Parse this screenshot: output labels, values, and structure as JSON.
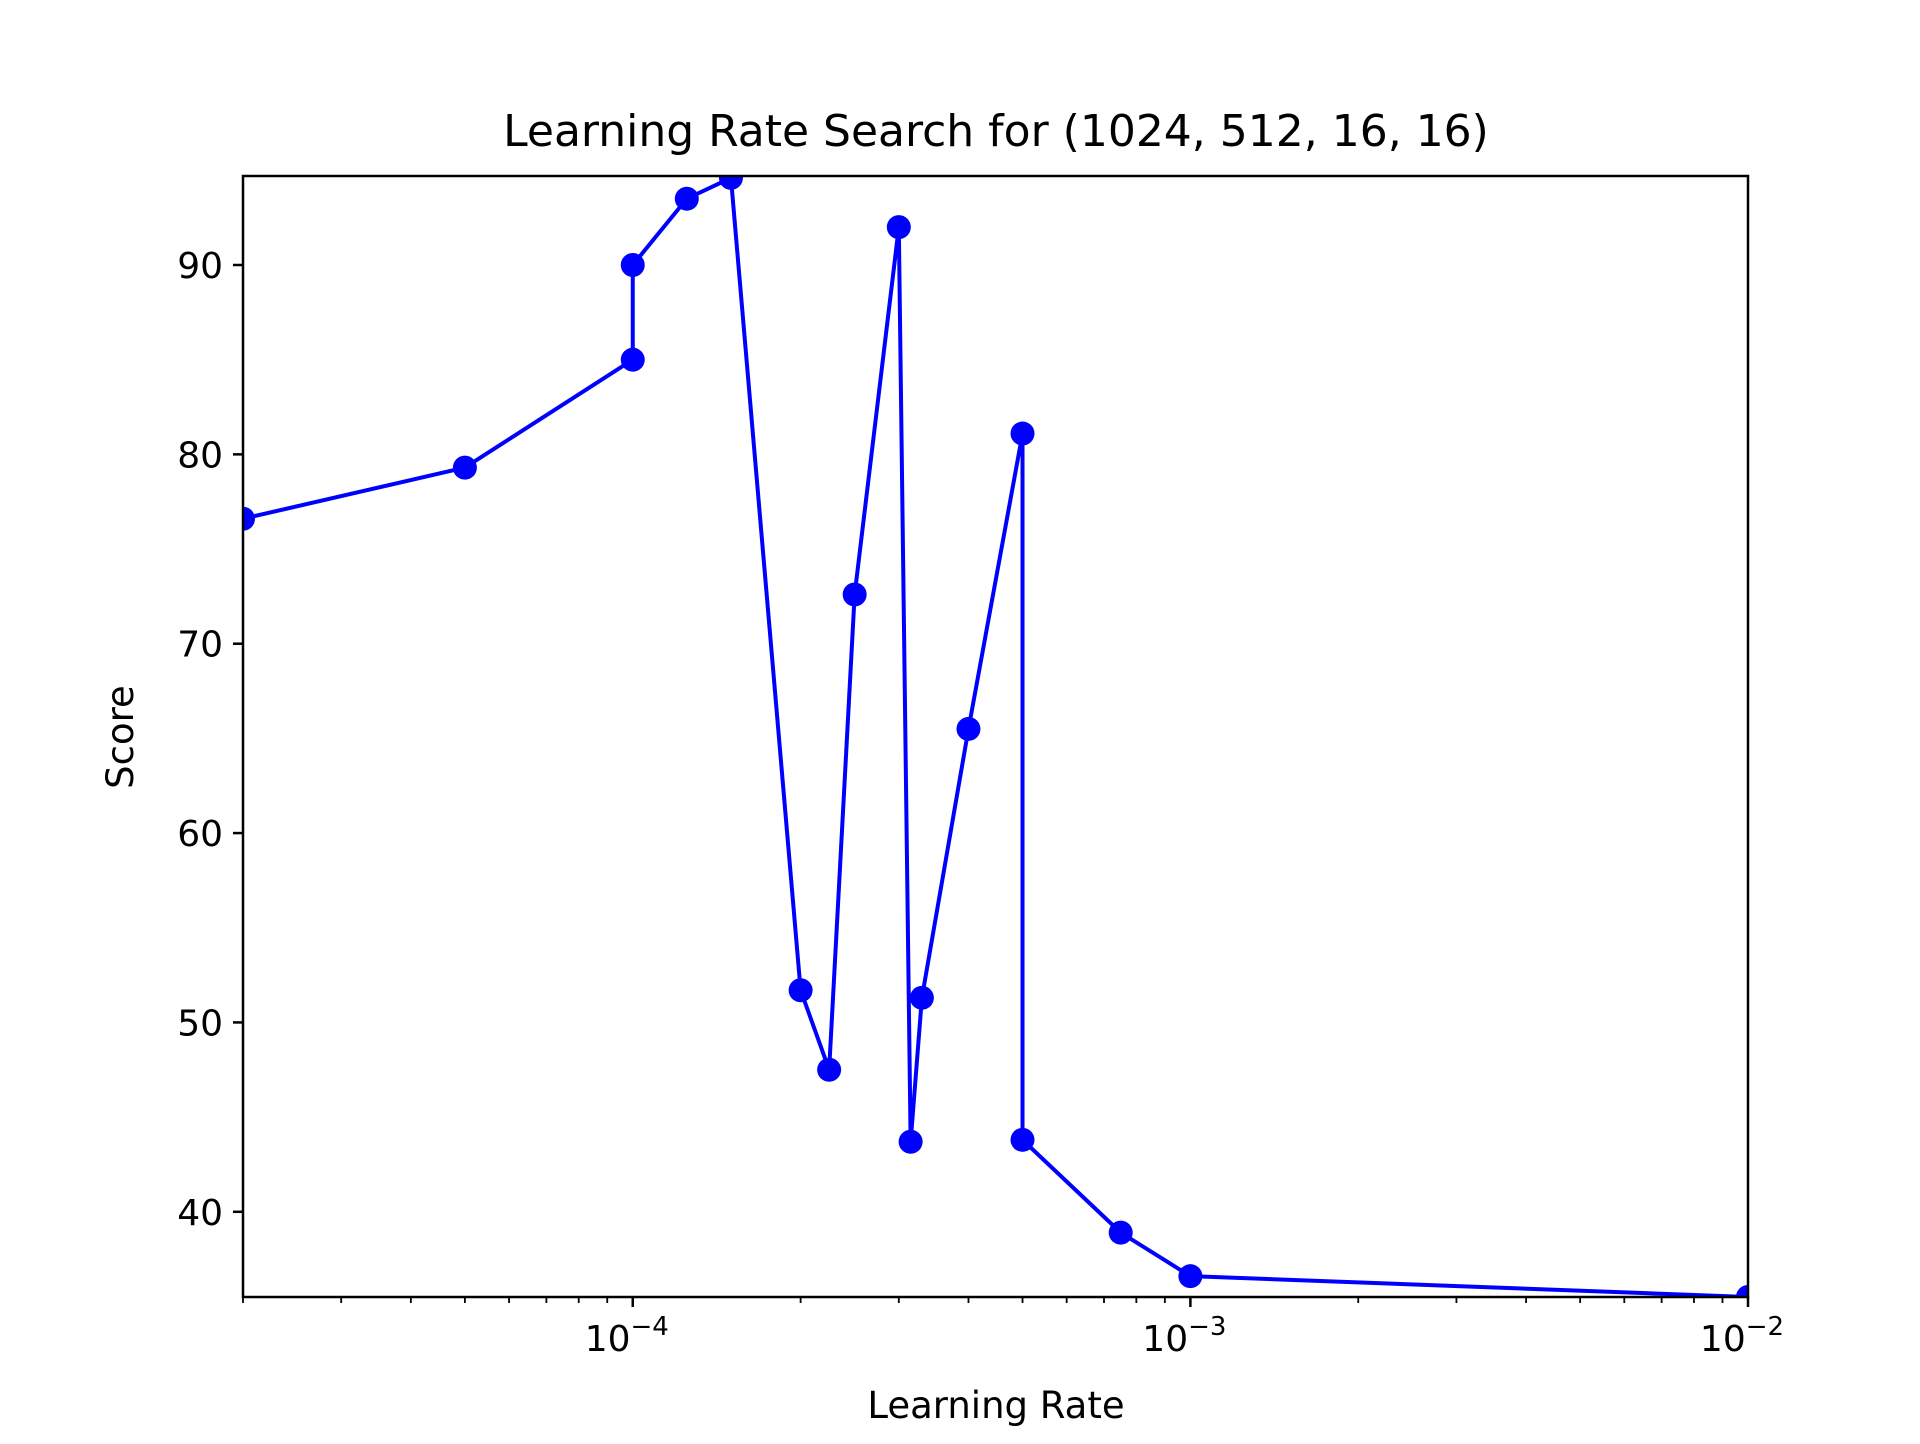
{
  "chart_data": {
    "type": "line",
    "title": "Learning Rate Search for (1024, 512, 16, 16)",
    "xlabel": "Learning Rate",
    "ylabel": "Score",
    "xscale": "log",
    "xlim": [
      2e-05,
      0.01
    ],
    "ylim": [
      35.5,
      94.7
    ],
    "grid": false,
    "x_ticks": [
      {
        "value": 0.0001,
        "base": "10",
        "exp": "−4"
      },
      {
        "value": 0.001,
        "base": "10",
        "exp": "−3"
      },
      {
        "value": 0.01,
        "base": "10",
        "exp": "−2"
      }
    ],
    "y_ticks": [
      40,
      50,
      60,
      70,
      80,
      90
    ],
    "series": [
      {
        "color": "#0000ff",
        "marker": "circle",
        "x": [
          2e-05,
          5e-05,
          0.0001,
          0.0001,
          0.000125,
          0.00015,
          0.0002,
          0.000225,
          0.00025,
          0.0003,
          0.000315,
          0.00033,
          0.0004,
          0.0005,
          0.0005,
          0.00075,
          0.001,
          0.01
        ],
        "y": [
          76.6,
          79.3,
          85.0,
          90.0,
          93.5,
          94.6,
          51.7,
          47.5,
          72.6,
          92.0,
          43.7,
          51.3,
          65.5,
          81.1,
          43.8,
          38.9,
          36.6,
          35.5
        ]
      }
    ]
  }
}
